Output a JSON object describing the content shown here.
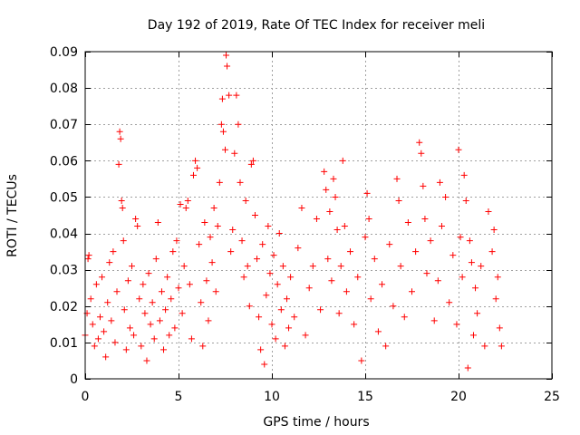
{
  "chart_data": {
    "type": "scatter",
    "title": "Day 192 of 2019, Rate Of TEC Index for receiver meli",
    "xlabel": "GPS time / hours",
    "ylabel": "ROTI / TECUs",
    "xlim": [
      0,
      25
    ],
    "ylim": [
      0,
      0.09
    ],
    "x_ticks": [
      0,
      5,
      10,
      15,
      20,
      25
    ],
    "x_tick_labels": [
      "0",
      "5",
      "10",
      "15",
      "20",
      "25"
    ],
    "y_ticks": [
      0,
      0.01,
      0.02,
      0.03,
      0.04,
      0.05,
      0.06,
      0.07,
      0.08,
      0.09
    ],
    "y_tick_labels": [
      "0",
      "0.01",
      "0.02",
      "0.03",
      "0.04",
      "0.05",
      "0.06",
      "0.07",
      "0.08",
      "0.09"
    ],
    "grid": true,
    "marker": "plus",
    "marker_color": "#ff0000",
    "data_extent_x": [
      0,
      22.3
    ],
    "series": [
      {
        "name": "ROTI",
        "color": "#ff0000",
        "points": [
          [
            0.0,
            0.012
          ],
          [
            0.1,
            0.018
          ],
          [
            0.15,
            0.033
          ],
          [
            0.2,
            0.034
          ],
          [
            0.3,
            0.022
          ],
          [
            0.4,
            0.015
          ],
          [
            0.5,
            0.009
          ],
          [
            0.6,
            0.026
          ],
          [
            0.7,
            0.011
          ],
          [
            0.8,
            0.017
          ],
          [
            0.9,
            0.028
          ],
          [
            1.0,
            0.013
          ],
          [
            1.1,
            0.006
          ],
          [
            1.2,
            0.021
          ],
          [
            1.3,
            0.032
          ],
          [
            1.4,
            0.016
          ],
          [
            1.5,
            0.035
          ],
          [
            1.6,
            0.01
          ],
          [
            1.7,
            0.024
          ],
          [
            1.8,
            0.059
          ],
          [
            1.85,
            0.068
          ],
          [
            1.9,
            0.066
          ],
          [
            1.95,
            0.049
          ],
          [
            2.0,
            0.047
          ],
          [
            2.05,
            0.038
          ],
          [
            2.1,
            0.019
          ],
          [
            2.2,
            0.008
          ],
          [
            2.3,
            0.027
          ],
          [
            2.4,
            0.014
          ],
          [
            2.5,
            0.031
          ],
          [
            2.6,
            0.012
          ],
          [
            2.7,
            0.044
          ],
          [
            2.8,
            0.042
          ],
          [
            2.9,
            0.022
          ],
          [
            3.0,
            0.009
          ],
          [
            3.1,
            0.026
          ],
          [
            3.2,
            0.018
          ],
          [
            3.3,
            0.005
          ],
          [
            3.4,
            0.029
          ],
          [
            3.5,
            0.015
          ],
          [
            3.6,
            0.021
          ],
          [
            3.7,
            0.011
          ],
          [
            3.8,
            0.033
          ],
          [
            3.9,
            0.043
          ],
          [
            4.0,
            0.016
          ],
          [
            4.1,
            0.024
          ],
          [
            4.2,
            0.008
          ],
          [
            4.3,
            0.019
          ],
          [
            4.4,
            0.028
          ],
          [
            4.5,
            0.012
          ],
          [
            4.6,
            0.022
          ],
          [
            4.7,
            0.035
          ],
          [
            4.8,
            0.014
          ],
          [
            4.9,
            0.038
          ],
          [
            5.0,
            0.025
          ],
          [
            5.1,
            0.048
          ],
          [
            5.2,
            0.018
          ],
          [
            5.3,
            0.031
          ],
          [
            5.4,
            0.047
          ],
          [
            5.5,
            0.049
          ],
          [
            5.6,
            0.026
          ],
          [
            5.7,
            0.011
          ],
          [
            5.8,
            0.056
          ],
          [
            5.9,
            0.06
          ],
          [
            6.0,
            0.058
          ],
          [
            6.1,
            0.037
          ],
          [
            6.2,
            0.021
          ],
          [
            6.3,
            0.009
          ],
          [
            6.4,
            0.043
          ],
          [
            6.5,
            0.027
          ],
          [
            6.6,
            0.016
          ],
          [
            6.7,
            0.039
          ],
          [
            6.8,
            0.032
          ],
          [
            6.9,
            0.047
          ],
          [
            7.0,
            0.024
          ],
          [
            7.1,
            0.042
          ],
          [
            7.2,
            0.054
          ],
          [
            7.3,
            0.07
          ],
          [
            7.35,
            0.077
          ],
          [
            7.4,
            0.068
          ],
          [
            7.5,
            0.063
          ],
          [
            7.55,
            0.089
          ],
          [
            7.6,
            0.086
          ],
          [
            7.7,
            0.078
          ],
          [
            7.8,
            0.035
          ],
          [
            7.9,
            0.041
          ],
          [
            8.0,
            0.062
          ],
          [
            8.1,
            0.078
          ],
          [
            8.2,
            0.07
          ],
          [
            8.3,
            0.054
          ],
          [
            8.4,
            0.038
          ],
          [
            8.5,
            0.028
          ],
          [
            8.6,
            0.049
          ],
          [
            8.7,
            0.031
          ],
          [
            8.8,
            0.02
          ],
          [
            8.9,
            0.059
          ],
          [
            9.0,
            0.06
          ],
          [
            9.1,
            0.045
          ],
          [
            9.2,
            0.033
          ],
          [
            9.3,
            0.017
          ],
          [
            9.4,
            0.008
          ],
          [
            9.5,
            0.037
          ],
          [
            9.6,
            0.004
          ],
          [
            9.7,
            0.023
          ],
          [
            9.8,
            0.042
          ],
          [
            9.9,
            0.029
          ],
          [
            10.0,
            0.015
          ],
          [
            10.1,
            0.034
          ],
          [
            10.2,
            0.011
          ],
          [
            10.3,
            0.026
          ],
          [
            10.4,
            0.04
          ],
          [
            10.5,
            0.019
          ],
          [
            10.6,
            0.031
          ],
          [
            10.7,
            0.009
          ],
          [
            10.8,
            0.022
          ],
          [
            10.9,
            0.014
          ],
          [
            11.0,
            0.028
          ],
          [
            11.2,
            0.017
          ],
          [
            11.4,
            0.036
          ],
          [
            11.6,
            0.047
          ],
          [
            11.8,
            0.012
          ],
          [
            12.0,
            0.025
          ],
          [
            12.2,
            0.031
          ],
          [
            12.4,
            0.044
          ],
          [
            12.6,
            0.019
          ],
          [
            12.8,
            0.057
          ],
          [
            12.9,
            0.052
          ],
          [
            13.0,
            0.033
          ],
          [
            13.1,
            0.046
          ],
          [
            13.2,
            0.027
          ],
          [
            13.3,
            0.055
          ],
          [
            13.4,
            0.05
          ],
          [
            13.5,
            0.041
          ],
          [
            13.6,
            0.018
          ],
          [
            13.7,
            0.031
          ],
          [
            13.8,
            0.06
          ],
          [
            13.9,
            0.042
          ],
          [
            14.0,
            0.024
          ],
          [
            14.2,
            0.035
          ],
          [
            14.4,
            0.015
          ],
          [
            14.6,
            0.028
          ],
          [
            14.8,
            0.005
          ],
          [
            15.0,
            0.039
          ],
          [
            15.1,
            0.051
          ],
          [
            15.2,
            0.044
          ],
          [
            15.3,
            0.022
          ],
          [
            15.5,
            0.033
          ],
          [
            15.7,
            0.013
          ],
          [
            15.9,
            0.026
          ],
          [
            16.1,
            0.009
          ],
          [
            16.3,
            0.037
          ],
          [
            16.5,
            0.02
          ],
          [
            16.7,
            0.055
          ],
          [
            16.8,
            0.049
          ],
          [
            16.9,
            0.031
          ],
          [
            17.1,
            0.017
          ],
          [
            17.3,
            0.043
          ],
          [
            17.5,
            0.024
          ],
          [
            17.7,
            0.035
          ],
          [
            17.9,
            0.065
          ],
          [
            18.0,
            0.062
          ],
          [
            18.1,
            0.053
          ],
          [
            18.2,
            0.044
          ],
          [
            18.3,
            0.029
          ],
          [
            18.5,
            0.038
          ],
          [
            18.7,
            0.016
          ],
          [
            18.9,
            0.027
          ],
          [
            19.0,
            0.054
          ],
          [
            19.1,
            0.042
          ],
          [
            19.3,
            0.05
          ],
          [
            19.5,
            0.021
          ],
          [
            19.7,
            0.034
          ],
          [
            19.9,
            0.015
          ],
          [
            20.0,
            0.063
          ],
          [
            20.1,
            0.039
          ],
          [
            20.2,
            0.028
          ],
          [
            20.3,
            0.056
          ],
          [
            20.4,
            0.049
          ],
          [
            20.5,
            0.003
          ],
          [
            20.6,
            0.038
          ],
          [
            20.7,
            0.032
          ],
          [
            20.8,
            0.012
          ],
          [
            20.9,
            0.025
          ],
          [
            21.0,
            0.018
          ],
          [
            21.2,
            0.031
          ],
          [
            21.4,
            0.009
          ],
          [
            21.6,
            0.046
          ],
          [
            21.8,
            0.035
          ],
          [
            21.9,
            0.041
          ],
          [
            22.0,
            0.022
          ],
          [
            22.1,
            0.028
          ],
          [
            22.2,
            0.014
          ],
          [
            22.3,
            0.009
          ]
        ]
      }
    ]
  }
}
